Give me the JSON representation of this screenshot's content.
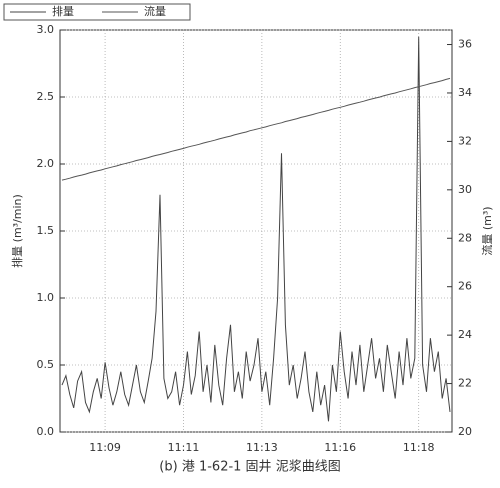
{
  "chart_data": {
    "type": "line",
    "caption": "(b) 港 1-62-1 固井  泥浆曲线图",
    "ylabel": "排量 (m³/min)",
    "y2label": "流量 (m³)",
    "categories": [
      null,
      null,
      null,
      null,
      null,
      null,
      null,
      null,
      null,
      null,
      null,
      "11:09",
      null,
      null,
      null,
      null,
      null,
      null,
      null,
      null,
      null,
      null,
      null,
      null,
      null,
      null,
      null,
      null,
      null,
      null,
      null,
      "11:11",
      null,
      null,
      null,
      null,
      null,
      null,
      null,
      null,
      null,
      null,
      null,
      null,
      null,
      null,
      null,
      null,
      null,
      null,
      null,
      "11:13",
      null,
      null,
      null,
      null,
      null,
      null,
      null,
      null,
      null,
      null,
      null,
      null,
      null,
      null,
      null,
      null,
      null,
      null,
      null,
      "11:16",
      null,
      null,
      null,
      null,
      null,
      null,
      null,
      null,
      null,
      null,
      null,
      null,
      null,
      null,
      null,
      null,
      null,
      null,
      null,
      "11:18",
      null,
      null,
      null,
      null,
      null,
      null,
      null,
      null
    ],
    "series": [
      {
        "name": "排量",
        "color": "#444444",
        "values": [
          0.35,
          0.42,
          0.28,
          0.18,
          0.38,
          0.45,
          0.22,
          0.15,
          0.3,
          0.4,
          0.25,
          0.52,
          0.33,
          0.2,
          0.3,
          0.45,
          0.28,
          0.2,
          0.35,
          0.5,
          0.3,
          0.22,
          0.38,
          0.55,
          0.9,
          1.77,
          0.4,
          0.25,
          0.3,
          0.45,
          0.2,
          0.35,
          0.6,
          0.28,
          0.42,
          0.75,
          0.3,
          0.5,
          0.22,
          0.65,
          0.35,
          0.2,
          0.55,
          0.8,
          0.3,
          0.45,
          0.25,
          0.6,
          0.38,
          0.5,
          0.7,
          0.3,
          0.45,
          0.2,
          0.55,
          1.0,
          2.08,
          0.8,
          0.35,
          0.5,
          0.25,
          0.4,
          0.6,
          0.3,
          0.15,
          0.45,
          0.2,
          0.35,
          0.08,
          0.5,
          0.3,
          0.75,
          0.45,
          0.25,
          0.6,
          0.35,
          0.65,
          0.3,
          0.5,
          0.7,
          0.4,
          0.55,
          0.3,
          0.65,
          0.45,
          0.25,
          0.6,
          0.35,
          0.7,
          0.4,
          0.55,
          2.95,
          0.5,
          0.3,
          0.7,
          0.45,
          0.6,
          0.25,
          0.4,
          0.15
        ]
      },
      {
        "name": "流量",
        "color": "#555555",
        "axis": "y2",
        "values": [
          30.4,
          30.44,
          30.48,
          30.53,
          30.57,
          30.61,
          30.65,
          30.7,
          30.74,
          30.78,
          30.82,
          30.87,
          30.91,
          30.95,
          30.99,
          31.04,
          31.08,
          31.12,
          31.16,
          31.21,
          31.25,
          31.29,
          31.33,
          31.38,
          31.42,
          31.46,
          31.5,
          31.54,
          31.59,
          31.63,
          31.67,
          31.71,
          31.76,
          31.8,
          31.84,
          31.88,
          31.93,
          31.97,
          32.01,
          32.05,
          32.1,
          32.14,
          32.18,
          32.22,
          32.27,
          32.31,
          32.35,
          32.39,
          32.44,
          32.48,
          32.52,
          32.56,
          32.6,
          32.65,
          32.69,
          32.73,
          32.77,
          32.82,
          32.86,
          32.9,
          32.94,
          32.99,
          33.03,
          33.07,
          33.11,
          33.16,
          33.2,
          33.24,
          33.28,
          33.33,
          33.37,
          33.41,
          33.45,
          33.5,
          33.54,
          33.58,
          33.62,
          33.66,
          33.71,
          33.75,
          33.79,
          33.83,
          33.88,
          33.92,
          33.96,
          34.0,
          34.05,
          34.09,
          34.13,
          34.17,
          34.22,
          34.26,
          34.3,
          34.34,
          34.39,
          34.43,
          34.47,
          34.51,
          34.56,
          34.6
        ]
      }
    ],
    "ylim": [
      0,
      3
    ],
    "yticks": [
      {
        "value": 0,
        "label": "0.0"
      },
      0.5,
      {
        "value": 1,
        "label": "1.0"
      },
      1.5,
      {
        "value": 2,
        "label": "2.0"
      },
      2.5,
      {
        "value": 3,
        "label": "3.0"
      }
    ],
    "y2lim": [
      20,
      36.6
    ],
    "y2ticks": [
      20,
      22,
      24,
      26,
      28,
      30,
      32,
      34,
      36
    ],
    "grid": true
  }
}
